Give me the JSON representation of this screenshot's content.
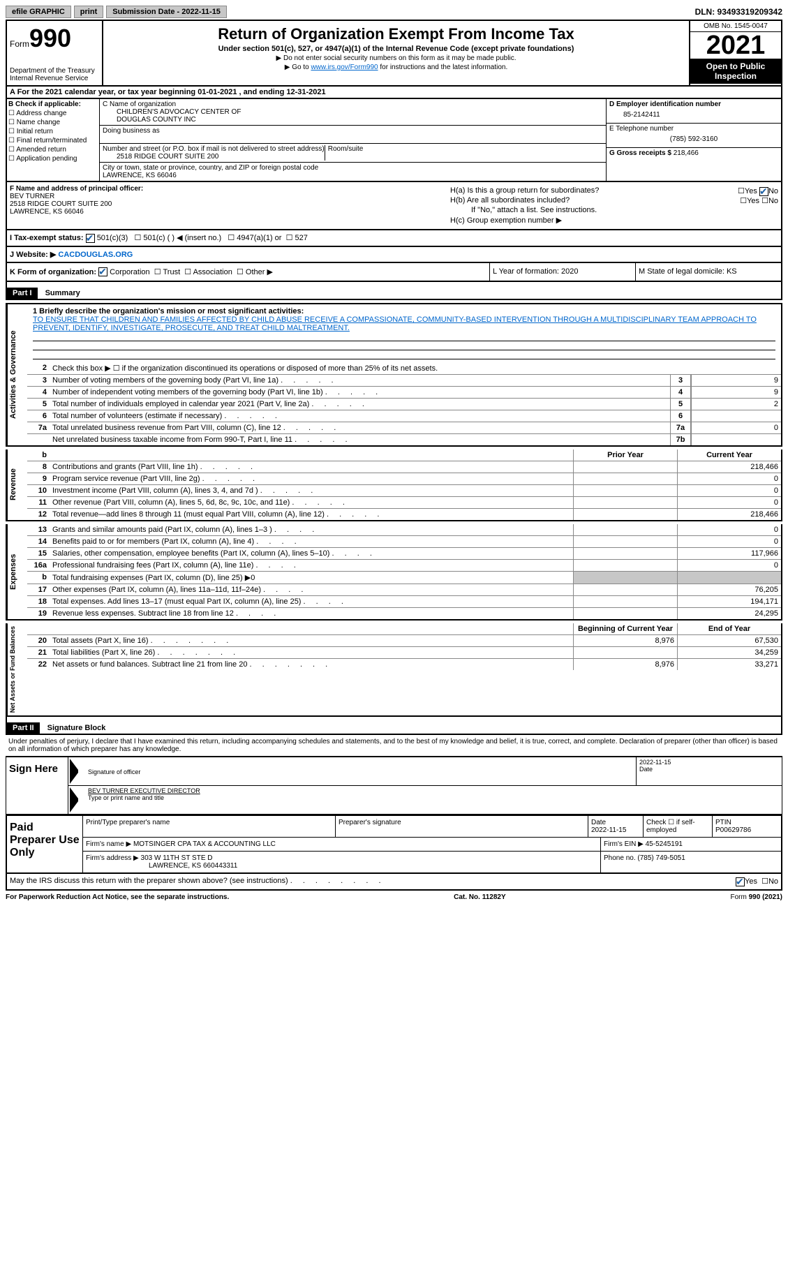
{
  "top": {
    "efile": "efile GRAPHIC",
    "print": "print",
    "submission": "Submission Date - 2022-11-15",
    "dln": "DLN: 93493319209342"
  },
  "header": {
    "form_label": "Form",
    "form_number": "990",
    "title": "Return of Organization Exempt From Income Tax",
    "subtitle": "Under section 501(c), 527, or 4947(a)(1) of the Internal Revenue Code (except private foundations)",
    "note1": "▶ Do not enter social security numbers on this form as it may be made public.",
    "note2_pre": "▶ Go to ",
    "note2_link": "www.irs.gov/Form990",
    "note2_post": " for instructions and the latest information.",
    "dept": "Department of the Treasury\nInternal Revenue Service",
    "omb": "OMB No. 1545-0047",
    "year": "2021",
    "open": "Open to Public Inspection"
  },
  "row_a": "A For the 2021 calendar year, or tax year beginning 01-01-2021    , and ending 12-31-2021",
  "col_b": {
    "title": "B Check if applicable:",
    "items": [
      "☐ Address change",
      "☐ Name change",
      "☐ Initial return",
      "☐ Final return/terminated",
      "☐ Amended return",
      "☐ Application pending"
    ]
  },
  "col_c": {
    "name_label": "C Name of organization",
    "name": "CHILDREN'S ADVOCACY CENTER OF\nDOUGLAS COUNTY INC",
    "dba_label": "Doing business as",
    "addr_label": "Number and street (or P.O. box if mail is not delivered to street address)",
    "room_label": "Room/suite",
    "addr": "2518 RIDGE COURT SUITE 200",
    "city_label": "City or town, state or province, country, and ZIP or foreign postal code",
    "city": "LAWRENCE, KS  66046"
  },
  "col_d": {
    "ein_label": "D Employer identification number",
    "ein": "85-2142411",
    "phone_label": "E Telephone number",
    "phone": "(785) 592-3160",
    "gross_label": "G Gross receipts $",
    "gross": "218,466"
  },
  "f": {
    "label": "F Name and address of principal officer:",
    "name": "BEV TURNER",
    "addr": "2518 RIDGE COURT SUITE 200",
    "city": "LAWRENCE, KS  66046"
  },
  "h": {
    "a": "H(a)  Is this a group return for subordinates?",
    "a_yes": "Yes",
    "a_no": "No",
    "b": "H(b)  Are all subordinates included?",
    "b_note": "If \"No,\" attach a list. See instructions.",
    "c": "H(c)  Group exemption number ▶"
  },
  "i": {
    "label": "I  Tax-exempt status:",
    "opts": [
      "501(c)(3)",
      "501(c) (  ) ◀ (insert no.)",
      "4947(a)(1) or",
      "527"
    ]
  },
  "j": {
    "label": "J  Website: ▶",
    "value": "CACDOUGLAS.ORG"
  },
  "k": "K Form of organization:",
  "k_opts": [
    "Corporation",
    "Trust",
    "Association",
    "Other ▶"
  ],
  "l": "L Year of formation: 2020",
  "m": "M State of legal domicile: KS",
  "part1": {
    "label": "Part I",
    "title": "Summary"
  },
  "mission": {
    "q": "1  Briefly describe the organization's mission or most significant activities:",
    "text": "TO ENSURE THAT CHILDREN AND FAMILIES AFFECTED BY CHILD ABUSE RECEIVE A COMPASSIONATE, COMMUNITY-BASED INTERVENTION THROUGH A MULTIDISCIPLINARY TEAM APPROACH TO PREVENT, IDENTIFY, INVESTIGATE, PROSECUTE, AND TREAT CHILD MALTREATMENT."
  },
  "line2": "Check this box ▶ ☐ if the organization discontinued its operations or disposed of more than 25% of its net assets.",
  "side": {
    "ag": "Activities & Governance",
    "rev": "Revenue",
    "exp": "Expenses",
    "net": "Net Assets or Fund Balances"
  },
  "rows_ag": [
    {
      "n": "3",
      "d": "Number of voting members of the governing body (Part VI, line 1a)",
      "box": "3",
      "v": "9"
    },
    {
      "n": "4",
      "d": "Number of independent voting members of the governing body (Part VI, line 1b)",
      "box": "4",
      "v": "9"
    },
    {
      "n": "5",
      "d": "Total number of individuals employed in calendar year 2021 (Part V, line 2a)",
      "box": "5",
      "v": "2"
    },
    {
      "n": "6",
      "d": "Total number of volunteers (estimate if necessary)",
      "box": "6",
      "v": ""
    },
    {
      "n": "7a",
      "d": "Total unrelated business revenue from Part VIII, column (C), line 12",
      "box": "7a",
      "v": "0"
    },
    {
      "n": "",
      "d": "Net unrelated business taxable income from Form 990-T, Part I, line 11",
      "box": "7b",
      "v": ""
    }
  ],
  "rev_header": {
    "prior": "Prior Year",
    "current": "Current Year"
  },
  "rows_rev": [
    {
      "n": "8",
      "d": "Contributions and grants (Part VIII, line 1h)",
      "p": "",
      "c": "218,466"
    },
    {
      "n": "9",
      "d": "Program service revenue (Part VIII, line 2g)",
      "p": "",
      "c": "0"
    },
    {
      "n": "10",
      "d": "Investment income (Part VIII, column (A), lines 3, 4, and 7d )",
      "p": "",
      "c": "0"
    },
    {
      "n": "11",
      "d": "Other revenue (Part VIII, column (A), lines 5, 6d, 8c, 9c, 10c, and 11e)",
      "p": "",
      "c": "0"
    },
    {
      "n": "12",
      "d": "Total revenue—add lines 8 through 11 (must equal Part VIII, column (A), line 12)",
      "p": "",
      "c": "218,466"
    }
  ],
  "rows_exp": [
    {
      "n": "13",
      "d": "Grants and similar amounts paid (Part IX, column (A), lines 1–3 )",
      "p": "",
      "c": "0"
    },
    {
      "n": "14",
      "d": "Benefits paid to or for members (Part IX, column (A), line 4)",
      "p": "",
      "c": "0"
    },
    {
      "n": "15",
      "d": "Salaries, other compensation, employee benefits (Part IX, column (A), lines 5–10)",
      "p": "",
      "c": "117,966"
    },
    {
      "n": "16a",
      "d": "Professional fundraising fees (Part IX, column (A), line 11e)",
      "p": "",
      "c": "0"
    },
    {
      "n": "b",
      "d": "Total fundraising expenses (Part IX, column (D), line 25) ▶0",
      "gray": true
    },
    {
      "n": "17",
      "d": "Other expenses (Part IX, column (A), lines 11a–11d, 11f–24e)",
      "p": "",
      "c": "76,205"
    },
    {
      "n": "18",
      "d": "Total expenses. Add lines 13–17 (must equal Part IX, column (A), line 25)",
      "p": "",
      "c": "194,171"
    },
    {
      "n": "19",
      "d": "Revenue less expenses. Subtract line 18 from line 12",
      "p": "",
      "c": "24,295"
    }
  ],
  "net_header": {
    "begin": "Beginning of Current Year",
    "end": "End of Year"
  },
  "rows_net": [
    {
      "n": "20",
      "d": "Total assets (Part X, line 16)",
      "p": "8,976",
      "c": "67,530"
    },
    {
      "n": "21",
      "d": "Total liabilities (Part X, line 26)",
      "p": "",
      "c": "34,259"
    },
    {
      "n": "22",
      "d": "Net assets or fund balances. Subtract line 21 from line 20",
      "p": "8,976",
      "c": "33,271"
    }
  ],
  "part2": {
    "label": "Part II",
    "title": "Signature Block"
  },
  "sig": {
    "text": "Under penalties of perjury, I declare that I have examined this return, including accompanying schedules and statements, and to the best of my knowledge and belief, it is true, correct, and complete. Declaration of preparer (other than officer) is based on all information of which preparer has any knowledge.",
    "sign_here": "Sign Here",
    "sig_label": "Signature of officer",
    "date_label": "Date",
    "date": "2022-11-15",
    "name": "BEV TURNER EXECUTIVE DIRECTOR",
    "name_label": "Type or print name and title"
  },
  "paid": {
    "title": "Paid Preparer Use Only",
    "h1": "Print/Type preparer's name",
    "h2": "Preparer's signature",
    "h3": "Date",
    "h3v": "2022-11-15",
    "h4": "Check ☐ if self-employed",
    "h5": "PTIN",
    "h5v": "P00629786",
    "firm_label": "Firm's name    ▶",
    "firm": "MOTSINGER CPA TAX & ACCOUNTING LLC",
    "ein_label": "Firm's EIN ▶",
    "ein": "45-5245191",
    "addr_label": "Firm's address ▶",
    "addr": "303 W 11TH ST STE D",
    "addr2": "LAWRENCE, KS  660443311",
    "phone_label": "Phone no.",
    "phone": "(785) 749-5051"
  },
  "may": {
    "q": "May the IRS discuss this return with the preparer shown above? (see instructions)",
    "yes": "Yes",
    "no": "No"
  },
  "footer": {
    "left": "For Paperwork Reduction Act Notice, see the separate instructions.",
    "center": "Cat. No. 11282Y",
    "right": "Form 990 (2021)"
  }
}
